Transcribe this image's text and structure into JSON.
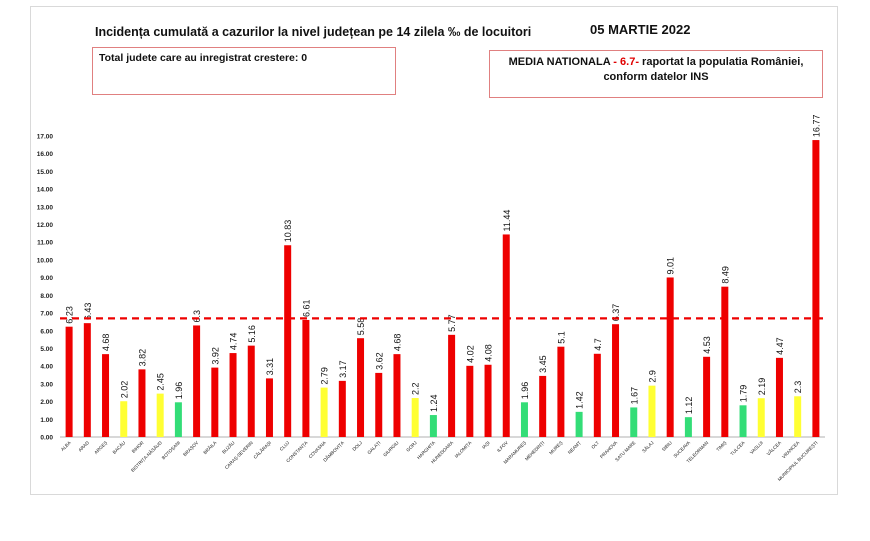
{
  "header": {
    "title": "Incidența cumulată a cazurilor la nivel județean pe 14 zilela ‰ de locuitori",
    "date": "05 MARTIE 2022"
  },
  "info_left": {
    "text": "Total judete care au inregistrat crestere: 0"
  },
  "info_right": {
    "prefix": "MEDIA NATIONALA",
    "dash1": " - ",
    "value": "6.7",
    "dash2": "- ",
    "suffix": " raportat la populatia României,",
    "line2": "conform datelor INS"
  },
  "colors": {
    "red": "#ee0000",
    "yellow": "#ffff33",
    "green": "#33dd77",
    "reference_line": "#ee0000"
  },
  "chart_data": {
    "type": "bar",
    "ylim": [
      0,
      17
    ],
    "y_ticks": [
      "0.00",
      "1.00",
      "2.00",
      "3.00",
      "4.00",
      "5.00",
      "6.00",
      "7.00",
      "8.00",
      "9.00",
      "10.00",
      "11.00",
      "12.00",
      "13.00",
      "14.00",
      "15.00",
      "16.00",
      "17.00"
    ],
    "reference_line": 6.7,
    "categories": [
      "ALBA",
      "ARAD",
      "ARGEȘ",
      "BACĂU",
      "BIHOR",
      "BISTRIȚA-NĂSĂUD",
      "BOTOȘANI",
      "BRAȘOV",
      "BRĂILA",
      "BUZĂU",
      "CARAȘ-SEVERIN",
      "CĂLĂRAȘI",
      "CLUJ",
      "CONSTANȚA",
      "COVASNA",
      "DÂMBOVIȚA",
      "DOLJ",
      "GALAȚI",
      "GIURGIU",
      "GORJ",
      "HARGHITA",
      "HUNEDOARA",
      "IALOMIȚA",
      "IAȘI",
      "ILFOV",
      "MARAMUREȘ",
      "MEHEDINȚI",
      "MUREȘ",
      "NEAMȚ",
      "OLT",
      "PRAHOVA",
      "SATU MARE",
      "SĂLAJ",
      "SIBIU",
      "SUCEAVA",
      "TELEORMAN",
      "TIMIȘ",
      "TULCEA",
      "VASLUI",
      "VÂLCEA",
      "VRANCEA",
      "MUNICIPIUL BUCUREȘTI"
    ],
    "values": [
      6.23,
      6.43,
      4.68,
      2.02,
      3.82,
      2.45,
      1.96,
      6.3,
      3.92,
      4.74,
      5.16,
      3.31,
      10.83,
      6.61,
      2.79,
      3.17,
      5.58,
      3.62,
      4.68,
      2.2,
      1.24,
      5.77,
      4.02,
      4.08,
      11.44,
      1.96,
      3.45,
      5.1,
      1.42,
      4.7,
      6.37,
      1.67,
      2.9,
      9.01,
      1.12,
      4.53,
      8.49,
      1.79,
      2.19,
      4.47,
      2.3,
      16.77
    ],
    "value_labels": [
      "6.23",
      "6.43",
      "4.68",
      "2.02",
      "3.82",
      "2.45",
      "1.96",
      "6.3",
      "3.92",
      "4.74",
      "5.16",
      "3.31",
      "10.83",
      "6.61",
      "2.79",
      "3.17",
      "5.58",
      "3.62",
      "4.68",
      "2.2",
      "1.24",
      "5.77",
      "4.02",
      "4.08",
      "11.44",
      "1.96",
      "3.45",
      "5.1",
      "1.42",
      "4.7",
      "6.37",
      "1.67",
      "2.9",
      "9.01",
      "1.12",
      "4.53",
      "8.49",
      "1.79",
      "2.19",
      "4.47",
      "2.3",
      "16.77"
    ],
    "bar_colors": [
      "red",
      "red",
      "red",
      "yellow",
      "red",
      "yellow",
      "green",
      "red",
      "red",
      "red",
      "red",
      "red",
      "red",
      "red",
      "yellow",
      "red",
      "red",
      "red",
      "red",
      "yellow",
      "green",
      "red",
      "red",
      "red",
      "red",
      "green",
      "red",
      "red",
      "green",
      "red",
      "red",
      "green",
      "yellow",
      "red",
      "green",
      "red",
      "red",
      "green",
      "yellow",
      "red",
      "yellow",
      "red"
    ]
  }
}
